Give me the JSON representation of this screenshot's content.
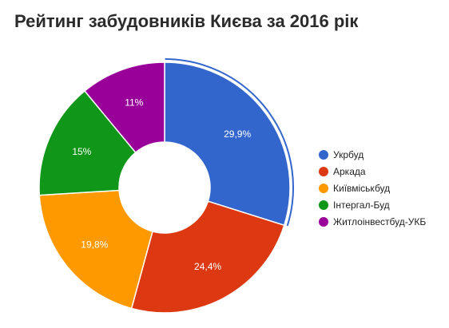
{
  "chart_data": {
    "type": "pie",
    "title": "Рейтинг забудовників Києва за 2016 рік",
    "donut": true,
    "legend_position": "right",
    "slices": [
      {
        "name": "Укрбуд",
        "value": 29.9,
        "label": "29,9%",
        "color": "#3366cc"
      },
      {
        "name": "Аркада",
        "value": 24.4,
        "label": "24,4%",
        "color": "#dc3912"
      },
      {
        "name": "Київміськбуд",
        "value": 19.8,
        "label": "19,8%",
        "color": "#ff9900"
      },
      {
        "name": "Інтергал-Буд",
        "value": 15,
        "label": "15%",
        "color": "#109618"
      },
      {
        "name": "Житлоінвестбуд-УКБ",
        "value": 11,
        "label": "11%",
        "color": "#990099"
      }
    ],
    "highlighted_slice": "Укрбуд"
  }
}
